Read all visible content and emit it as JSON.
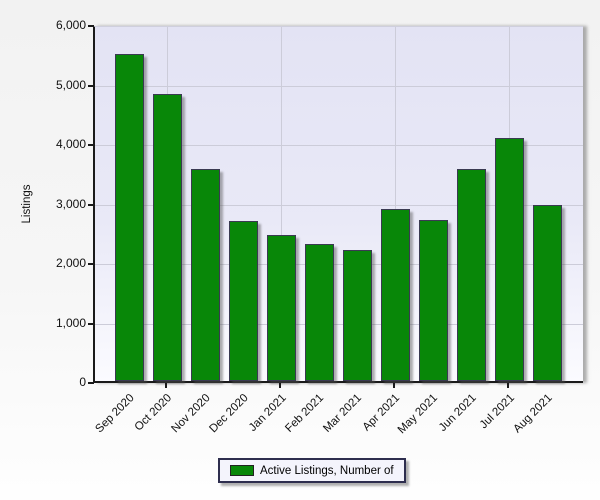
{
  "chart_data": {
    "type": "bar",
    "title": "",
    "xlabel": "",
    "ylabel": "Listings",
    "ylim": [
      0,
      6000
    ],
    "ytick_interval": 1000,
    "ytick_labels": [
      "0",
      "1,000",
      "2,000",
      "3,000",
      "4,000",
      "5,000",
      "6,000"
    ],
    "categories": [
      "Sep 2020",
      "Oct 2020",
      "Nov 2020",
      "Dec 2020",
      "Jan 2021",
      "Feb 2021",
      "Mar 2021",
      "Apr 2021",
      "May 2021",
      "Jun 2021",
      "Jul 2021",
      "Aug 2021"
    ],
    "series": [
      {
        "name": "Active Listings, Number of",
        "values": [
          5500,
          4820,
          3560,
          2690,
          2460,
          2300,
          2200,
          2890,
          2700,
          3560,
          4090,
          2950
        ]
      }
    ],
    "grid": true,
    "vgrid_at_category_index": [
      1,
      4,
      7,
      10
    ],
    "legend_position": "bottom",
    "bar_color": "#088708",
    "bar_border_color": "#3a3a52"
  },
  "legend": {
    "label": "Active Listings, Number of",
    "swatch_color": "#088708"
  }
}
